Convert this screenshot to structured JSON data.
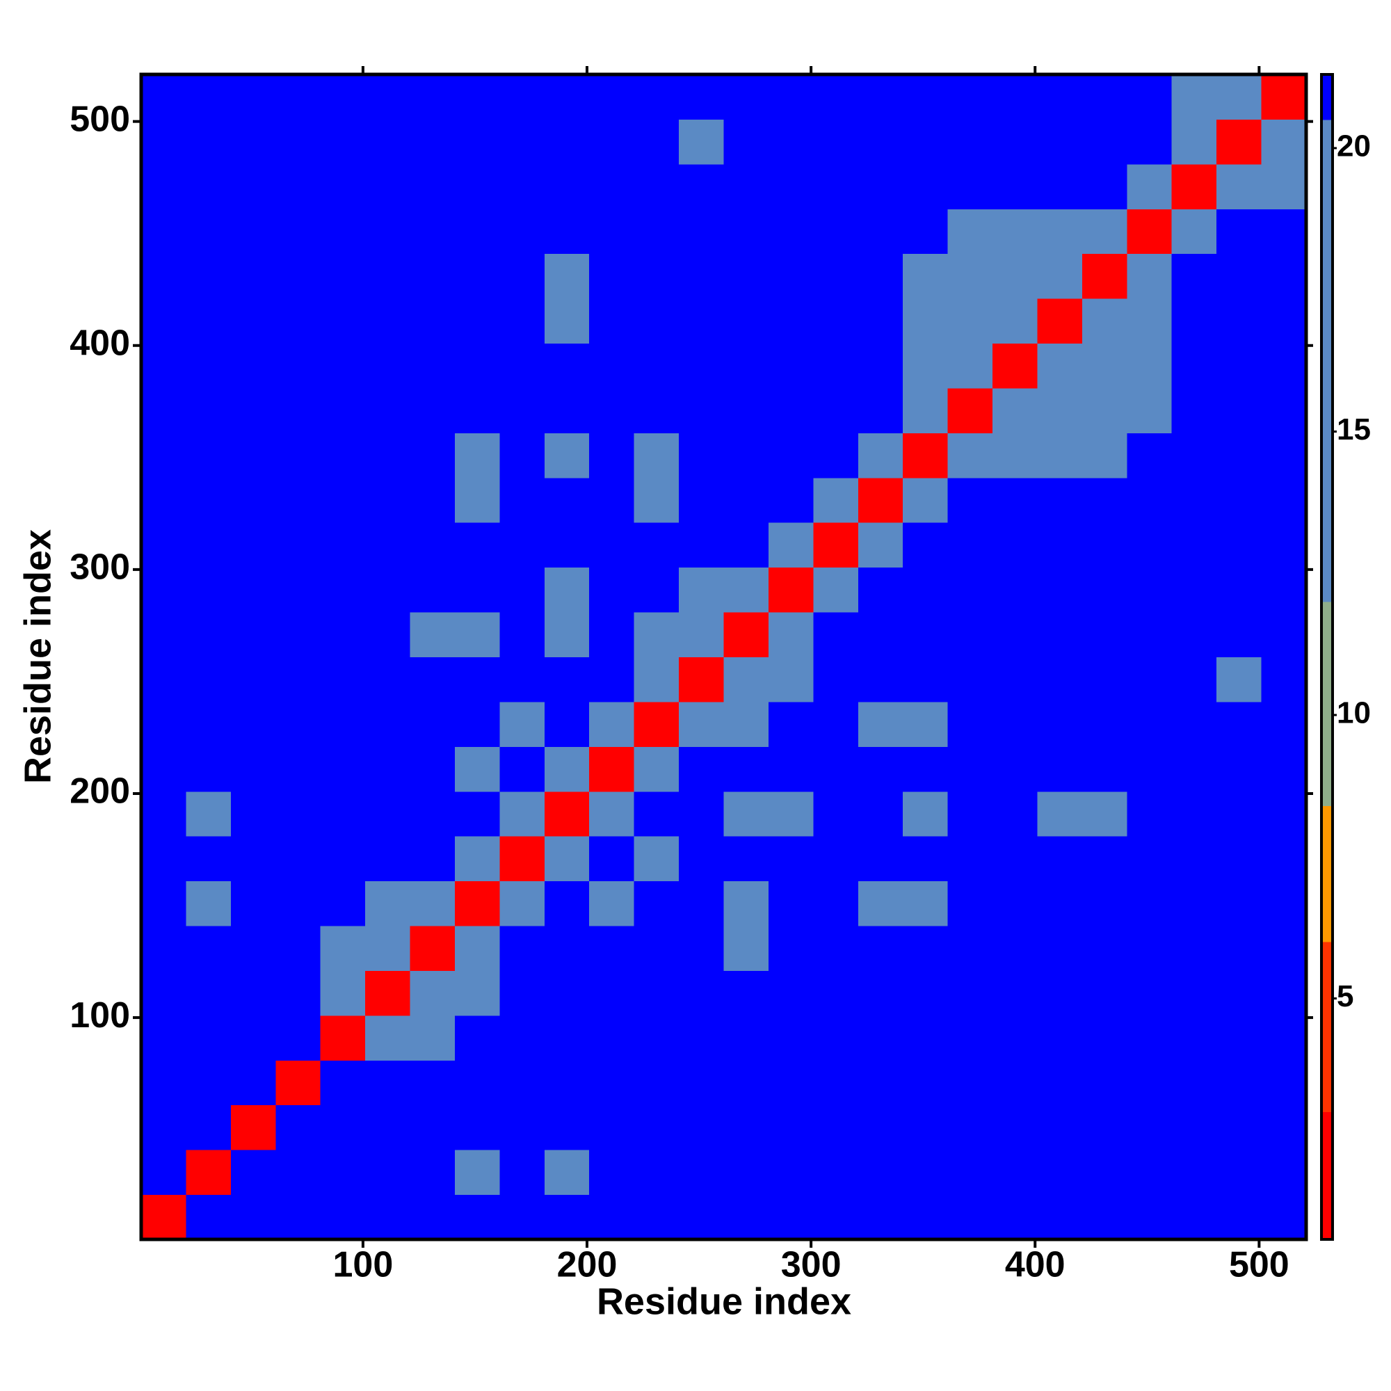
{
  "chart_data": {
    "type": "heatmap",
    "xlabel": "Residue index",
    "ylabel": "Residue index",
    "xlim": [
      1,
      521
    ],
    "ylim": [
      1,
      521
    ],
    "xticks": [
      100,
      200,
      300,
      400,
      500
    ],
    "yticks": [
      100,
      200,
      300,
      400,
      500
    ],
    "xbins": [
      1,
      21,
      41,
      61,
      81,
      101,
      121,
      141,
      161,
      181,
      201,
      221,
      241,
      261,
      281,
      301,
      321,
      341,
      361,
      381,
      401,
      421,
      441,
      461,
      481,
      501,
      521
    ],
    "ybins": [
      1,
      21,
      41,
      61,
      81,
      101,
      121,
      141,
      161,
      181,
      201,
      221,
      241,
      261,
      281,
      301,
      321,
      341,
      361,
      381,
      401,
      421,
      441,
      461,
      481,
      501,
      521
    ],
    "zlim": [
      0.75,
      21.3
    ],
    "zticks": [
      5,
      10,
      15,
      20
    ],
    "colorbands": [
      {
        "from": 0.75,
        "to": 3,
        "color": "#ff0000"
      },
      {
        "from": 3,
        "to": 6,
        "color": "#ff3300"
      },
      {
        "from": 6,
        "to": 8.4,
        "color": "#ff9900"
      },
      {
        "from": 8.4,
        "to": 12,
        "color": "#8fae8a"
      },
      {
        "from": 12,
        "to": 20.5,
        "color": "#5b8ac4"
      },
      {
        "from": 20.5,
        "to": 21.3,
        "color": "#0000ff"
      }
    ],
    "z": [
      [
        3,
        21,
        21,
        21,
        21,
        21,
        21,
        21,
        21,
        21,
        21,
        21,
        21,
        21,
        21,
        21,
        21,
        21,
        21,
        21,
        21,
        21,
        21,
        21,
        21,
        21
      ],
      [
        21,
        3,
        21,
        21,
        21,
        21,
        21,
        18,
        21,
        18,
        21,
        21,
        21,
        21,
        21,
        21,
        21,
        21,
        21,
        21,
        21,
        21,
        21,
        21,
        21,
        21
      ],
      [
        21,
        21,
        3,
        21,
        21,
        21,
        21,
        21,
        21,
        21,
        21,
        21,
        21,
        21,
        21,
        21,
        21,
        21,
        21,
        21,
        21,
        21,
        21,
        21,
        21,
        21
      ],
      [
        21,
        21,
        21,
        3,
        21,
        21,
        21,
        21,
        21,
        21,
        21,
        21,
        21,
        21,
        21,
        21,
        21,
        21,
        21,
        21,
        21,
        21,
        21,
        21,
        21,
        21
      ],
      [
        21,
        21,
        21,
        21,
        3,
        14,
        14,
        21,
        21,
        21,
        21,
        21,
        21,
        21,
        21,
        21,
        21,
        21,
        21,
        21,
        21,
        21,
        21,
        21,
        21,
        21
      ],
      [
        21,
        21,
        21,
        21,
        14,
        3,
        14,
        14,
        21,
        21,
        21,
        21,
        21,
        21,
        21,
        21,
        21,
        21,
        21,
        21,
        21,
        21,
        21,
        21,
        21,
        21
      ],
      [
        21,
        21,
        21,
        21,
        14,
        14,
        3,
        14,
        21,
        21,
        21,
        21,
        21,
        16,
        21,
        21,
        21,
        21,
        21,
        21,
        21,
        21,
        21,
        21,
        21,
        21
      ],
      [
        21,
        18,
        21,
        21,
        21,
        14,
        14,
        3,
        14,
        21,
        14,
        21,
        21,
        16,
        21,
        21,
        16,
        16,
        21,
        21,
        21,
        21,
        21,
        21,
        21,
        21
      ],
      [
        21,
        21,
        21,
        21,
        21,
        21,
        21,
        14,
        3,
        14,
        21,
        13,
        21,
        21,
        21,
        21,
        21,
        21,
        21,
        21,
        21,
        21,
        21,
        21,
        21,
        21
      ],
      [
        21,
        18,
        21,
        21,
        21,
        21,
        21,
        21,
        14,
        3,
        14,
        21,
        21,
        15,
        16,
        21,
        21,
        15,
        21,
        21,
        16,
        16,
        21,
        21,
        21,
        21
      ],
      [
        21,
        21,
        21,
        21,
        21,
        21,
        21,
        14,
        21,
        14,
        3,
        14,
        21,
        21,
        21,
        21,
        21,
        21,
        21,
        21,
        21,
        21,
        21,
        21,
        21,
        21
      ],
      [
        21,
        21,
        21,
        21,
        21,
        21,
        21,
        21,
        13,
        21,
        14,
        3,
        14,
        13,
        21,
        21,
        17,
        17,
        21,
        21,
        21,
        21,
        21,
        21,
        21,
        21
      ],
      [
        21,
        21,
        21,
        21,
        21,
        21,
        21,
        21,
        21,
        21,
        21,
        14,
        3,
        14,
        14,
        21,
        21,
        21,
        21,
        21,
        21,
        21,
        21,
        21,
        15,
        21
      ],
      [
        21,
        21,
        21,
        21,
        21,
        21,
        16,
        16,
        21,
        15,
        21,
        13,
        14,
        3,
        14,
        21,
        21,
        21,
        21,
        21,
        21,
        21,
        21,
        21,
        21,
        21
      ],
      [
        21,
        21,
        21,
        21,
        21,
        21,
        21,
        21,
        21,
        16,
        21,
        21,
        14,
        14,
        3,
        14,
        21,
        21,
        21,
        21,
        21,
        21,
        21,
        21,
        21,
        21
      ],
      [
        21,
        21,
        21,
        21,
        21,
        21,
        21,
        21,
        21,
        21,
        21,
        21,
        21,
        21,
        14,
        3,
        14,
        21,
        21,
        21,
        21,
        21,
        21,
        21,
        21,
        21
      ],
      [
        21,
        21,
        21,
        21,
        21,
        21,
        21,
        16,
        21,
        21,
        21,
        17,
        21,
        21,
        21,
        14,
        3,
        14,
        21,
        21,
        21,
        21,
        21,
        21,
        21,
        21
      ],
      [
        21,
        21,
        21,
        21,
        21,
        21,
        21,
        16,
        21,
        15,
        21,
        17,
        21,
        21,
        21,
        21,
        14,
        3,
        14,
        15,
        15,
        15,
        21,
        21,
        21,
        21
      ],
      [
        21,
        21,
        21,
        21,
        21,
        21,
        21,
        21,
        21,
        21,
        21,
        21,
        21,
        21,
        21,
        21,
        21,
        14,
        3,
        14,
        14,
        14,
        15,
        21,
        21,
        21
      ],
      [
        21,
        21,
        21,
        21,
        21,
        21,
        21,
        21,
        21,
        21,
        21,
        21,
        21,
        21,
        21,
        21,
        21,
        15,
        14,
        3,
        14,
        14,
        15,
        21,
        21,
        21
      ],
      [
        21,
        21,
        21,
        21,
        21,
        21,
        21,
        21,
        21,
        16,
        21,
        21,
        21,
        21,
        21,
        21,
        21,
        15,
        14,
        14,
        3,
        14,
        14,
        21,
        21,
        21
      ],
      [
        21,
        21,
        21,
        21,
        21,
        21,
        21,
        21,
        21,
        16,
        21,
        21,
        21,
        21,
        21,
        21,
        21,
        15,
        14,
        14,
        14,
        3,
        14,
        21,
        21,
        21
      ],
      [
        21,
        21,
        21,
        21,
        21,
        21,
        21,
        21,
        21,
        21,
        21,
        21,
        21,
        21,
        21,
        21,
        21,
        21,
        15,
        15,
        14,
        14,
        3,
        14,
        21,
        21
      ],
      [
        21,
        21,
        21,
        21,
        21,
        21,
        21,
        21,
        21,
        21,
        21,
        21,
        21,
        21,
        21,
        21,
        21,
        21,
        21,
        21,
        21,
        21,
        14,
        3,
        14,
        13
      ],
      [
        21,
        21,
        21,
        21,
        21,
        21,
        21,
        21,
        21,
        21,
        21,
        21,
        15,
        21,
        21,
        21,
        21,
        21,
        21,
        21,
        21,
        21,
        21,
        14,
        3,
        14
      ],
      [
        21,
        21,
        21,
        21,
        21,
        21,
        21,
        21,
        21,
        21,
        21,
        21,
        21,
        21,
        21,
        21,
        21,
        21,
        21,
        21,
        21,
        21,
        21,
        13,
        14,
        3
      ]
    ]
  }
}
